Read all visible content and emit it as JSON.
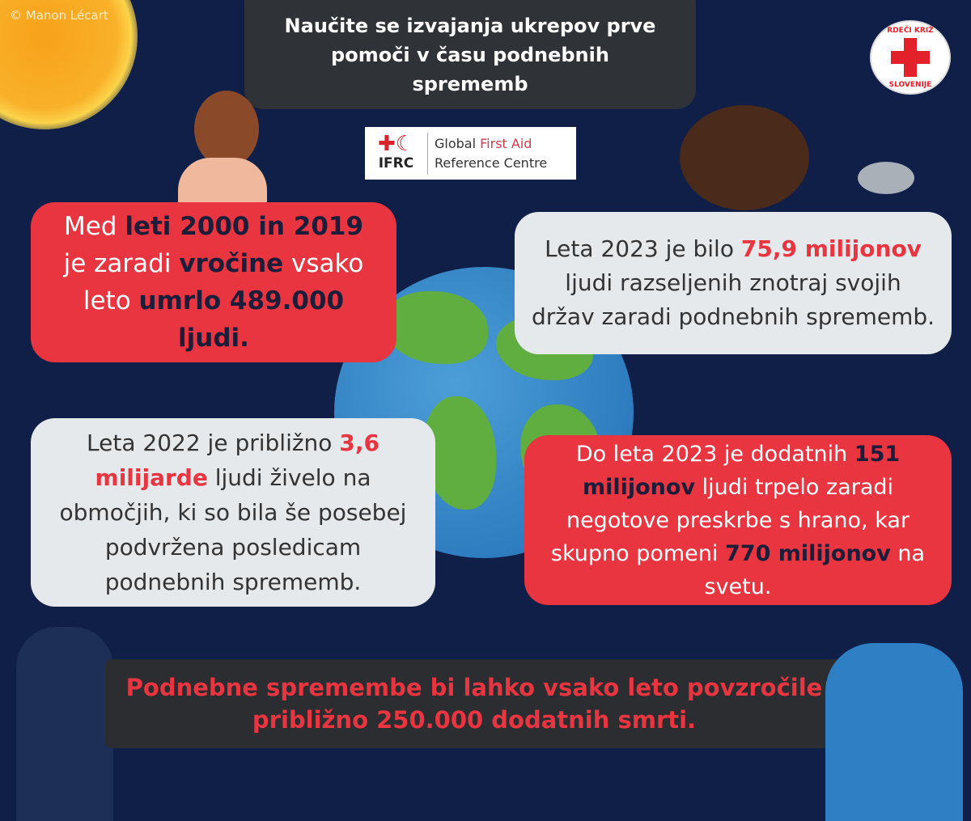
{
  "credit": "© Manon Lécart",
  "title": "Naučite se izvajanja ukrepov prve pomoči v času podnebnih sprememb",
  "ifrc_logo": {
    "symbol": "✚☾",
    "abbr": "IFRC",
    "line1_a": "Global ",
    "line1_b": "First Aid",
    "line2": "Reference Centre"
  },
  "red_cross_logo": {
    "top": "RDEČI KRIŽ",
    "bottom": "SLOVENIJE"
  },
  "colors": {
    "background": "#0f1f47",
    "red": "#e8353f",
    "light": "#e6e9ec",
    "dark_box": "#2b2d31"
  },
  "facts": [
    {
      "segments": [
        "Med ",
        "leti 2000 in 2019",
        " je zaradi ",
        "vročine",
        " vsako leto ",
        "umrlo 489.000 ljudi."
      ]
    },
    {
      "segments": [
        "Leta 2023 je bilo ",
        "75,9 milijonov",
        " ljudi razseljenih znotraj svojih držav zaradi podnebnih sprememb."
      ]
    },
    {
      "segments": [
        "Leta 2022 je približno ",
        "3,6 milijarde",
        " ljudi živelo na območjih, ki so bila še posebej podvržena posledicam podnebnih sprememb."
      ]
    },
    {
      "segments": [
        "Do leta 2023 je dodatnih ",
        "151 milijonov",
        " ljudi trpelo zaradi negotove preskrbe s hrano, kar skupno pomeni ",
        "770 milijonov",
        " na svetu."
      ]
    }
  ],
  "banner": "Podnebne spremembe bi lahko vsako leto povzročile približno 250.000 dodatnih smrti."
}
